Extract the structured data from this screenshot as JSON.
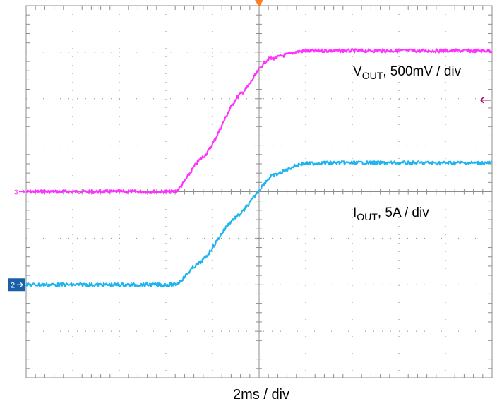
{
  "chart_data": {
    "type": "line",
    "grid": true,
    "divisions": {
      "x": 10,
      "y": 8
    },
    "x_range_div": [
      0,
      10
    ],
    "y_range_div": [
      0,
      8
    ],
    "xlabel": "2ms / div",
    "series": [
      {
        "name": "VOUT, 500mV / div",
        "color": "#ff33ff",
        "marker": "3",
        "x": [
          0,
          3.2,
          3.8,
          4.6,
          5.2,
          5.9,
          6.3,
          10
        ],
        "y": [
          4.0,
          4.0,
          4.75,
          6.1,
          6.85,
          7.02,
          7.03,
          7.03
        ]
      },
      {
        "name": "IOUT, 5A / div",
        "color": "#1eb4f0",
        "marker": "2",
        "x": [
          0,
          3.2,
          3.7,
          4.5,
          5.3,
          5.9,
          6.4,
          10
        ],
        "y": [
          2.0,
          2.0,
          2.45,
          3.45,
          4.35,
          4.6,
          4.62,
          4.62
        ]
      }
    ],
    "annotations": {
      "vout_main": "V",
      "vout_sub": "OUT",
      "vout_rest": ", 500mV / div",
      "iout_main": "I",
      "iout_sub": "OUT",
      "iout_rest": ", 5A / div"
    },
    "trigger_marker_color": "#ff7f27",
    "level_marker_color": "#a0186e"
  }
}
